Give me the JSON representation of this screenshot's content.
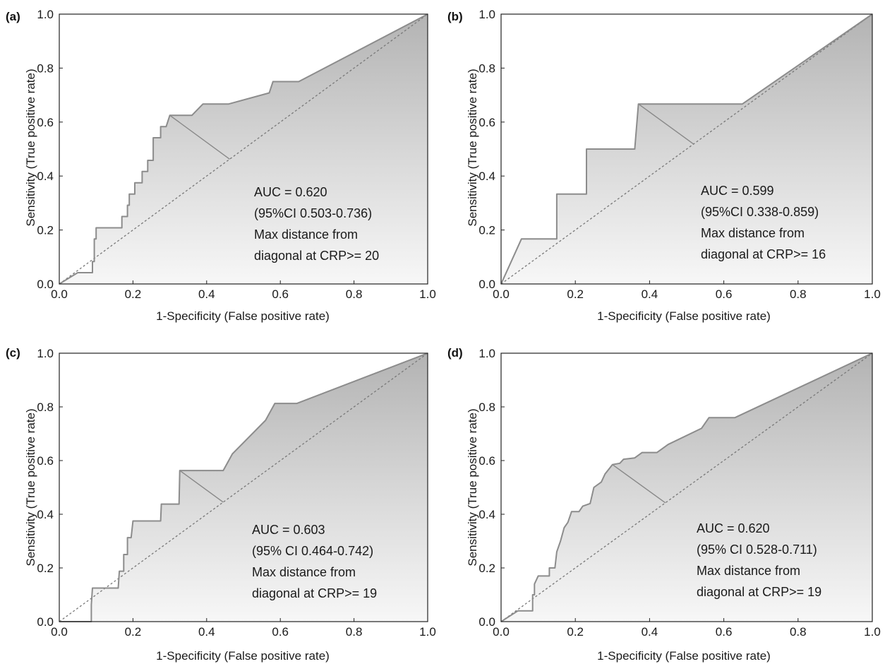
{
  "chart_data": [
    {
      "panel": "(a)",
      "type": "line",
      "xlabel": "1-Specificity (False positive rate)",
      "ylabel": "Sensitivity (True positive rate)",
      "xlim": [
        0,
        1
      ],
      "ylim": [
        0,
        1
      ],
      "xticks": [
        "0.0",
        "0.2",
        "0.4",
        "0.6",
        "0.8",
        "1.0"
      ],
      "yticks": [
        "0.0",
        "0.2",
        "0.4",
        "0.6",
        "0.8",
        "1.0"
      ],
      "grid": false,
      "annotation": [
        "AUC = 0.620",
        "(95%CI 0.503-0.736)",
        "Max distance from",
        "diagonal at CRP>= 20"
      ],
      "roc": [
        [
          0,
          0
        ],
        [
          0.05,
          0.042
        ],
        [
          0.09,
          0.042
        ],
        [
          0.09,
          0.083
        ],
        [
          0.095,
          0.083
        ],
        [
          0.095,
          0.167
        ],
        [
          0.1,
          0.167
        ],
        [
          0.1,
          0.208
        ],
        [
          0.17,
          0.208
        ],
        [
          0.17,
          0.25
        ],
        [
          0.185,
          0.25
        ],
        [
          0.185,
          0.292
        ],
        [
          0.19,
          0.292
        ],
        [
          0.19,
          0.333
        ],
        [
          0.205,
          0.333
        ],
        [
          0.205,
          0.375
        ],
        [
          0.225,
          0.375
        ],
        [
          0.225,
          0.417
        ],
        [
          0.24,
          0.417
        ],
        [
          0.24,
          0.458
        ],
        [
          0.255,
          0.458
        ],
        [
          0.255,
          0.542
        ],
        [
          0.275,
          0.542
        ],
        [
          0.275,
          0.583
        ],
        [
          0.29,
          0.583
        ],
        [
          0.3,
          0.625
        ],
        [
          0.36,
          0.625
        ],
        [
          0.39,
          0.667
        ],
        [
          0.46,
          0.667
        ],
        [
          0.57,
          0.708
        ],
        [
          0.58,
          0.75
        ],
        [
          0.65,
          0.75
        ],
        [
          1,
          1
        ]
      ],
      "max_distance_point": [
        0.3,
        0.625
      ]
    },
    {
      "panel": "(b)",
      "type": "line",
      "xlabel": "1-Specificity (False positive rate)",
      "ylabel": "Sensitivity (True positive rate)",
      "xlim": [
        0,
        1
      ],
      "ylim": [
        0,
        1
      ],
      "xticks": [
        "0.0",
        "0.2",
        "0.4",
        "0.6",
        "0.8",
        "1.0"
      ],
      "yticks": [
        "0.0",
        "0.2",
        "0.4",
        "0.6",
        "0.8",
        "1.0"
      ],
      "grid": false,
      "annotation": [
        "AUC = 0.599",
        "(95%CI 0.338-0.859)",
        "Max distance from",
        "diagonal at CRP>= 16"
      ],
      "roc": [
        [
          0,
          0
        ],
        [
          0.055,
          0.167
        ],
        [
          0.15,
          0.167
        ],
        [
          0.15,
          0.333
        ],
        [
          0.23,
          0.333
        ],
        [
          0.23,
          0.5
        ],
        [
          0.36,
          0.5
        ],
        [
          0.37,
          0.667
        ],
        [
          0.65,
          0.667
        ],
        [
          1,
          1
        ]
      ],
      "max_distance_point": [
        0.37,
        0.667
      ]
    },
    {
      "panel": "(c)",
      "type": "line",
      "xlabel": "1-Specificity (False positive rate)",
      "ylabel": "Sensitivity (True positive rate)",
      "xlim": [
        0,
        1
      ],
      "ylim": [
        0,
        1
      ],
      "xticks": [
        "0.0",
        "0.2",
        "0.4",
        "0.6",
        "0.8",
        "1.0"
      ],
      "yticks": [
        "0.0",
        "0.2",
        "0.4",
        "0.6",
        "0.8",
        "1.0"
      ],
      "grid": false,
      "annotation": [
        "AUC = 0.603",
        "(95% CI 0.464-0.742)",
        "Max distance from",
        "diagonal at CRP>= 19"
      ],
      "roc": [
        [
          0,
          0
        ],
        [
          0.087,
          0
        ],
        [
          0.087,
          0.063
        ],
        [
          0.09,
          0.125
        ],
        [
          0.16,
          0.125
        ],
        [
          0.163,
          0.188
        ],
        [
          0.175,
          0.188
        ],
        [
          0.175,
          0.25
        ],
        [
          0.185,
          0.25
        ],
        [
          0.185,
          0.313
        ],
        [
          0.195,
          0.313
        ],
        [
          0.2,
          0.375
        ],
        [
          0.275,
          0.375
        ],
        [
          0.277,
          0.438
        ],
        [
          0.325,
          0.438
        ],
        [
          0.327,
          0.563
        ],
        [
          0.445,
          0.563
        ],
        [
          0.47,
          0.625
        ],
        [
          0.56,
          0.75
        ],
        [
          0.585,
          0.813
        ],
        [
          0.645,
          0.813
        ],
        [
          1,
          1
        ]
      ],
      "max_distance_point": [
        0.327,
        0.563
      ]
    },
    {
      "panel": "(d)",
      "type": "line",
      "xlabel": "1-Specificity (False positive rate)",
      "ylabel": "Sensitivity (True positive rate)",
      "xlim": [
        0,
        1
      ],
      "ylim": [
        0,
        1
      ],
      "xticks": [
        "0.0",
        "0.2",
        "0.4",
        "0.6",
        "0.8",
        "1.0"
      ],
      "yticks": [
        "0.0",
        "0.2",
        "0.4",
        "0.6",
        "0.8",
        "1.0"
      ],
      "grid": false,
      "annotation": [
        "AUC = 0.620",
        "(95% CI 0.528-0.711)",
        "Max distance from",
        "diagonal at CRP>= 19"
      ],
      "roc": [
        [
          0,
          0
        ],
        [
          0.045,
          0.04
        ],
        [
          0.085,
          0.04
        ],
        [
          0.085,
          0.1
        ],
        [
          0.09,
          0.1
        ],
        [
          0.09,
          0.14
        ],
        [
          0.1,
          0.17
        ],
        [
          0.13,
          0.17
        ],
        [
          0.13,
          0.2
        ],
        [
          0.145,
          0.2
        ],
        [
          0.15,
          0.26
        ],
        [
          0.16,
          0.3
        ],
        [
          0.17,
          0.35
        ],
        [
          0.18,
          0.37
        ],
        [
          0.19,
          0.41
        ],
        [
          0.21,
          0.41
        ],
        [
          0.22,
          0.43
        ],
        [
          0.24,
          0.44
        ],
        [
          0.25,
          0.5
        ],
        [
          0.27,
          0.52
        ],
        [
          0.28,
          0.55
        ],
        [
          0.3,
          0.585
        ],
        [
          0.32,
          0.59
        ],
        [
          0.33,
          0.605
        ],
        [
          0.36,
          0.61
        ],
        [
          0.38,
          0.63
        ],
        [
          0.42,
          0.63
        ],
        [
          0.45,
          0.66
        ],
        [
          0.54,
          0.72
        ],
        [
          0.56,
          0.76
        ],
        [
          0.63,
          0.76
        ],
        [
          1,
          1
        ]
      ],
      "max_distance_point": [
        0.3,
        0.585
      ]
    }
  ]
}
